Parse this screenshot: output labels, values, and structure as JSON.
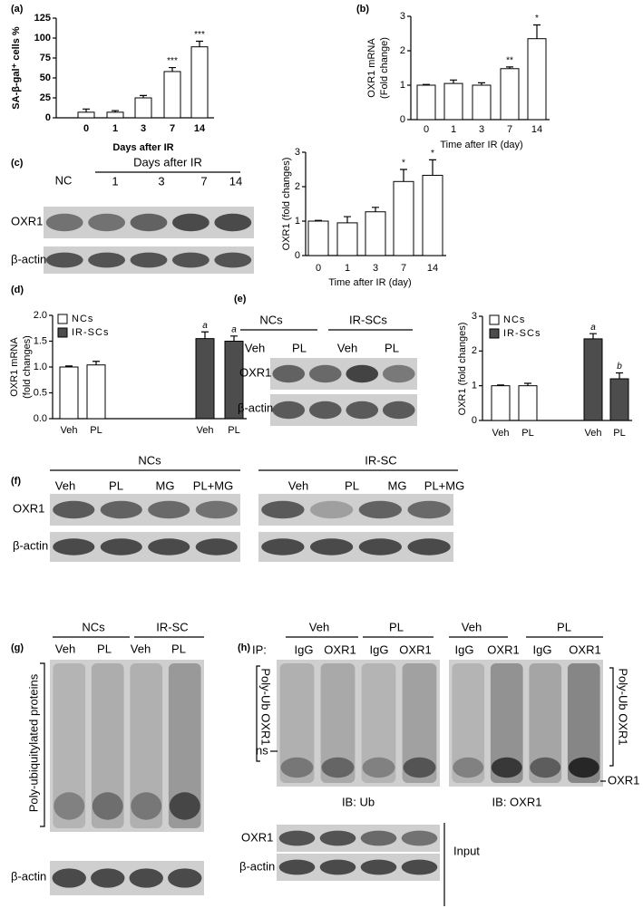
{
  "chart_data": [
    {
      "type": "bar",
      "panel": "(a)",
      "ylabel": [
        "SA-β-gal⁺ cells %"
      ],
      "xlabel": "Days after IR",
      "categories": [
        "0",
        "1",
        "3",
        "7",
        "14"
      ],
      "series": [
        {
          "color": "#ffffff",
          "values": [
            7,
            7,
            25,
            58,
            89
          ],
          "errors": [
            4,
            2,
            3,
            5,
            7
          ],
          "annotations": [
            null,
            null,
            null,
            "***",
            "***"
          ]
        }
      ],
      "ylim": [
        0,
        125
      ],
      "yticks": [
        0,
        25,
        50,
        75,
        100,
        125
      ]
    },
    {
      "type": "bar",
      "panel": "(b)",
      "ylabel": [
        "OXR1 mRNA",
        "(Fold change)"
      ],
      "xlabel": "Time after IR (day)",
      "categories": [
        "0",
        "1",
        "3",
        "7",
        "14"
      ],
      "series": [
        {
          "color": "#ffffff",
          "values": [
            1.0,
            1.05,
            1.0,
            1.48,
            2.35
          ],
          "errors": [
            0.02,
            0.1,
            0.07,
            0.05,
            0.4
          ],
          "annotations": [
            null,
            null,
            null,
            "**",
            "*"
          ]
        }
      ],
      "ylim": [
        0,
        3
      ],
      "yticks": [
        0,
        1,
        2,
        3
      ]
    },
    {
      "type": "bar",
      "ylabel": [
        "OXR1 (fold changes)"
      ],
      "xlabel": "Time after IR (day)",
      "categories": [
        "0",
        "1",
        "3",
        "7",
        "14"
      ],
      "series": [
        {
          "color": "#ffffff",
          "values": [
            1.0,
            0.95,
            1.27,
            2.15,
            2.33
          ],
          "errors": [
            0.02,
            0.18,
            0.13,
            0.35,
            0.45
          ],
          "annotations": [
            null,
            null,
            null,
            "*",
            "*"
          ]
        }
      ],
      "ylim": [
        0,
        3
      ],
      "yticks": [
        0,
        1,
        2,
        3
      ]
    },
    {
      "type": "bar",
      "panel": "(d)",
      "ylabel": [
        "OXR1 mRNA",
        "(fold changes)"
      ],
      "categories": [
        "Veh",
        "PL",
        "Veh",
        "PL"
      ],
      "series": [
        {
          "name": "NCs",
          "color": "#ffffff",
          "values": [
            1.0,
            1.04,
            null,
            null
          ],
          "errors": [
            0.02,
            0.07,
            null,
            null
          ],
          "annotations": [
            null,
            null,
            null,
            null
          ]
        },
        {
          "name": "IR-SCs",
          "color": "#4d4d4d",
          "values": [
            null,
            null,
            1.55,
            1.5
          ],
          "errors": [
            null,
            null,
            0.13,
            0.1
          ],
          "annotations": [
            null,
            null,
            "a",
            "a"
          ]
        }
      ],
      "ylim": [
        0,
        2
      ],
      "yticks": [
        {
          "value": 0,
          "label": "0.0"
        },
        0.5,
        {
          "value": 1,
          "label": "1.0"
        },
        1.5,
        {
          "value": 2,
          "label": "2.0"
        }
      ]
    },
    {
      "type": "bar",
      "ylabel": [
        "OXR1 (fold changes)"
      ],
      "categories": [
        "Veh",
        "PL",
        "Veh",
        "PL"
      ],
      "series": [
        {
          "name": "NCs",
          "color": "#ffffff",
          "values": [
            1.0,
            1.0,
            null,
            null
          ],
          "errors": [
            0.02,
            0.07,
            null,
            null
          ],
          "annotations": [
            null,
            null,
            null,
            null
          ]
        },
        {
          "name": "IR-SCs",
          "color": "#4d4d4d",
          "values": [
            null,
            null,
            2.35,
            1.2
          ],
          "errors": [
            null,
            null,
            0.15,
            0.17
          ],
          "annotations": [
            null,
            null,
            "a",
            "b"
          ]
        }
      ],
      "ylim": [
        0,
        3
      ],
      "yticks": [
        0,
        1,
        2,
        3
      ]
    }
  ],
  "blots": {
    "c": {
      "panel": "(c)",
      "nc": "NC",
      "header": "Days after IR",
      "lanes": [
        "1",
        "3",
        "7",
        "14"
      ],
      "rows": [
        "OXR1",
        "β-actin"
      ]
    },
    "e": {
      "panel": "(e)",
      "groups": [
        "NCs",
        "IR-SCs"
      ],
      "lanes": [
        "Veh",
        "PL",
        "Veh",
        "PL"
      ],
      "rows": [
        "OXR1",
        "β-actin"
      ]
    },
    "f": {
      "panel": "(f)",
      "groups": [
        "NCs",
        "IR-SC"
      ],
      "lanes": [
        "Veh",
        "PL",
        "MG",
        "PL+MG",
        "Veh",
        "PL",
        "MG",
        "PL+MG"
      ],
      "rows": [
        "OXR1",
        "β-actin"
      ]
    },
    "g": {
      "panel": "(g)",
      "groups": [
        "NCs",
        "IR-SC"
      ],
      "lanes": [
        "Veh",
        "PL",
        "Veh",
        "PL"
      ],
      "side": "Poly-ubiquitylated proteins",
      "rows": [
        "β-actin"
      ]
    },
    "h": {
      "panel": "(h)",
      "groups": [
        "Veh",
        "PL",
        "Veh",
        "PL"
      ],
      "ip": "IP:",
      "lanes": [
        "IgG",
        "OXR1",
        "IgG",
        "OXR1",
        "IgG",
        "OXR1",
        "IgG",
        "OXR1"
      ],
      "left_side": "Poly-Ub OXR1",
      "ns": "ns",
      "right_side": "Poly-Ub OXR1",
      "band": "OXR1",
      "ib": [
        "IB: Ub",
        "IB: OXR1"
      ],
      "input_rows": [
        "OXR1",
        "β-actin"
      ],
      "input": "Input"
    }
  }
}
